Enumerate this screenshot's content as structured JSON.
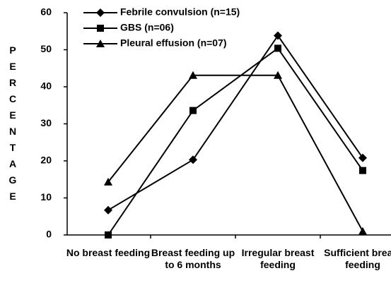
{
  "chart_data": {
    "type": "line",
    "y_label": "PERCENTAGE",
    "categories": [
      "No breast feeding",
      "Breast feeding up to 6 months",
      "Irregular breast feeding",
      "Sufficient breast feeding"
    ],
    "series": [
      {
        "name": "Febrile convulsion (n=15)",
        "color": "#000000",
        "marker": "diamond",
        "values": [
          6.7,
          20.3,
          53.8,
          20.8
        ]
      },
      {
        "name": "GBS (n=06)",
        "color": "#000000",
        "marker": "square",
        "values": [
          0,
          33.6,
          50.4,
          17.4
        ]
      },
      {
        "name": "Pleural effusion (n=07)",
        "color": "#000000",
        "marker": "triangle",
        "values": [
          14.3,
          43.1,
          43.1,
          1
        ]
      }
    ],
    "ylim": [
      0,
      60
    ],
    "yticks": [
      0,
      10,
      20,
      30,
      40,
      50,
      60
    ],
    "grid": false,
    "legend": "top"
  }
}
